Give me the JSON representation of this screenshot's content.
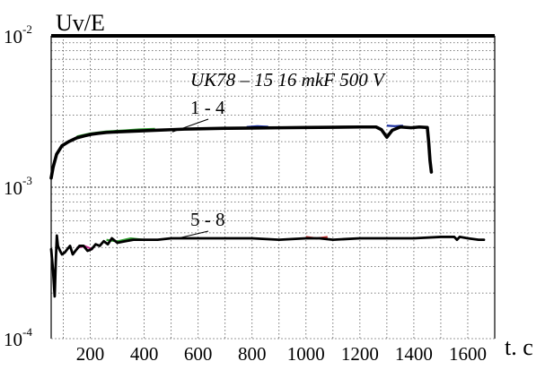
{
  "chart_data": {
    "type": "line",
    "title": "",
    "annotation": "UK78 – 15 16 mkF 500 V",
    "ylabel": "Uv/E",
    "xlabel": "t. c",
    "yscale": "log",
    "ylim": [
      0.0001,
      0.01
    ],
    "y_ticks": [
      {
        "base": "10",
        "exp": "-2",
        "value": 0.01
      },
      {
        "base": "10",
        "exp": "-3",
        "value": 0.001
      },
      {
        "base": "10",
        "exp": "-4",
        "value": 0.0001
      }
    ],
    "xlim": [
      55,
      1700
    ],
    "x_ticks": [
      {
        "label": "200",
        "value": 200
      },
      {
        "label": "400",
        "value": 400
      },
      {
        "label": "600",
        "value": 600
      },
      {
        "label": "800",
        "value": 800
      },
      {
        "label": "1000",
        "value": 1000
      },
      {
        "label": "1200",
        "value": 1200
      },
      {
        "label": "1400",
        "value": 1400
      },
      {
        "label": "1600",
        "value": 1600
      }
    ],
    "grid": true,
    "series": [
      {
        "name": "1 - 4",
        "color": "#000000",
        "x": [
          55,
          62,
          75,
          95,
          120,
          150,
          180,
          205,
          230,
          260,
          300,
          350,
          400,
          450,
          500,
          550,
          600,
          700,
          800,
          900,
          1000,
          1100,
          1200,
          1260,
          1280,
          1300,
          1320,
          1350,
          1390,
          1420,
          1450,
          1455,
          1460,
          1465
        ],
        "y": [
          0.00115,
          0.00135,
          0.00165,
          0.00188,
          0.002,
          0.00212,
          0.00219,
          0.00224,
          0.00227,
          0.0023,
          0.00232,
          0.00234,
          0.00236,
          0.00238,
          0.0024,
          0.00242,
          0.00243,
          0.00245,
          0.00246,
          0.00247,
          0.00248,
          0.00249,
          0.0025,
          0.0025,
          0.0024,
          0.00214,
          0.00238,
          0.0025,
          0.00247,
          0.0025,
          0.00248,
          0.002,
          0.0015,
          0.00126
        ]
      },
      {
        "name": "5 - 8",
        "color": "#000000",
        "x": [
          55,
          62,
          68,
          72,
          76,
          80,
          88,
          95,
          105,
          115,
          125,
          135,
          145,
          160,
          175,
          190,
          205,
          220,
          235,
          250,
          265,
          280,
          300,
          330,
          360,
          400,
          450,
          500,
          550,
          600,
          700,
          800,
          900,
          1000,
          1050,
          1100,
          1200,
          1300,
          1400,
          1500,
          1550,
          1560,
          1570,
          1600,
          1640,
          1660
        ],
        "y": [
          0.00039,
          0.00028,
          0.00019,
          0.00032,
          0.00048,
          0.00041,
          0.00038,
          0.00036,
          0.00037,
          0.00039,
          0.00041,
          0.00036,
          0.00038,
          0.00041,
          0.00041,
          0.00038,
          0.00039,
          0.00042,
          0.00041,
          0.00044,
          0.00042,
          0.00046,
          0.00043,
          0.00044,
          0.00045,
          0.00045,
          0.00045,
          0.00046,
          0.00046,
          0.00046,
          0.00046,
          0.00046,
          0.00045,
          0.00046,
          0.00046,
          0.00045,
          0.00046,
          0.00046,
          0.00046,
          0.00047,
          0.00047,
          0.00045,
          0.00047,
          0.00046,
          0.00045,
          0.00045
        ]
      }
    ],
    "noise_traces": [
      {
        "color": "#2e9d2e",
        "x": [
          150,
          200,
          260,
          320,
          380,
          440
        ],
        "y": [
          0.00212,
          0.00222,
          0.00229,
          0.00232,
          0.00236,
          0.00238
        ]
      },
      {
        "color": "#1a2fa0",
        "x": [
          780,
          820,
          860
        ],
        "y": [
          0.00245,
          0.00248,
          0.00246
        ]
      },
      {
        "color": "#1a2fa0",
        "x": [
          1300,
          1330,
          1360
        ],
        "y": [
          0.0025,
          0.00248,
          0.0025
        ]
      },
      {
        "color": "#2e9d2e",
        "x": [
          260,
          300,
          350,
          400
        ],
        "y": [
          0.00044,
          0.00043,
          0.00045,
          0.00044
        ]
      },
      {
        "color": "#c02a8a",
        "x": [
          150,
          180,
          210
        ],
        "y": [
          0.00039,
          0.0004,
          0.00038
        ]
      },
      {
        "color": "#c03030",
        "x": [
          1000,
          1040,
          1080
        ],
        "y": [
          0.00046,
          0.00045,
          0.00046
        ]
      }
    ]
  }
}
